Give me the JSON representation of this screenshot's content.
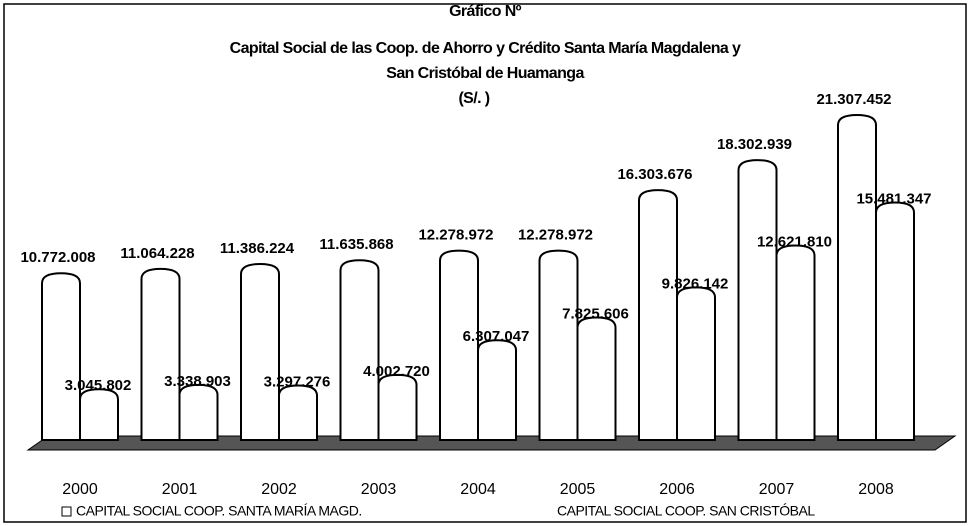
{
  "chart_data": {
    "type": "bar",
    "title": [
      "Gráfico Nº",
      "Capital Social de las Coop. de Ahorro y Crédito Santa María Magdalena y",
      "San Cristóbal de Huamanga",
      "(S/. )"
    ],
    "categories": [
      "2000",
      "2001",
      "2002",
      "2003",
      "2004",
      "2005",
      "2006",
      "2007",
      "2008"
    ],
    "series": [
      {
        "name": "CAPITAL SOCIAL COOP. SANTA MARÍA MAGD.",
        "color": "#ffffff",
        "values": [
          10772008,
          11064228,
          11386224,
          11635868,
          12278972,
          12278972,
          16303676,
          18302939,
          21307452
        ],
        "value_labels": [
          "10.772.008",
          "11.064.228",
          "11.386.224",
          "11.635.868",
          "12.278.972",
          "12.278.972",
          "16.303.676",
          "18.302.939",
          "21.307.452"
        ]
      },
      {
        "name": "CAPITAL SOCIAL COOP. SAN CRISTÓBAL",
        "color": "#ffffff",
        "values": [
          3045802,
          3338903,
          3297276,
          4002720,
          6307047,
          7825606,
          9826142,
          12621810,
          15481347
        ],
        "value_labels": [
          "3.045.802",
          "3.338.903",
          "3.297.276",
          "4.002.720",
          "6.307.047",
          "7.825.606",
          "9.826.142",
          "12.621.810",
          "15.481.347"
        ]
      }
    ]
  }
}
